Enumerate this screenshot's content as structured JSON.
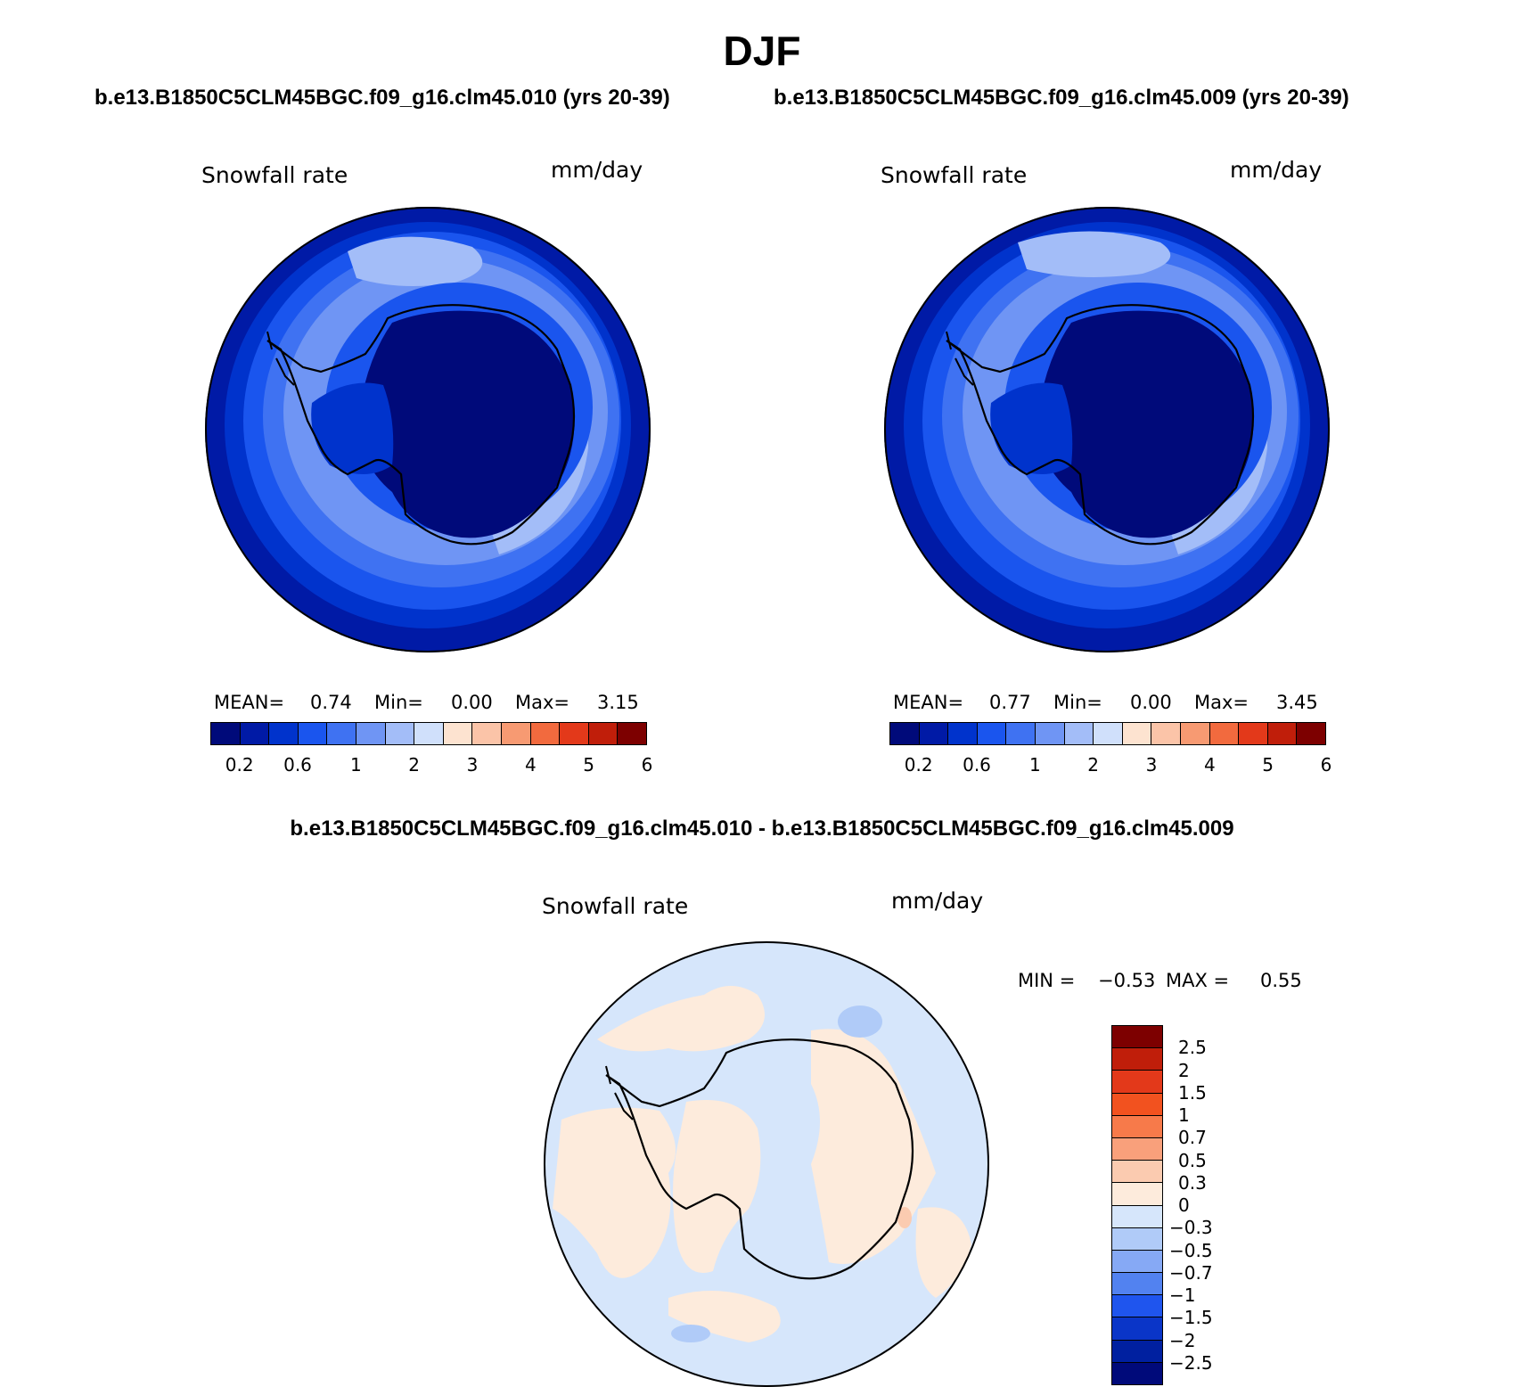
{
  "season": "DJF",
  "case_a": "b.e13.B1850C5CLM45BGC.f09_g16.clm45.010 (yrs 20-39)",
  "case_b": "b.e13.B1850C5CLM45BGC.f09_g16.clm45.009 (yrs 20-39)",
  "diff_title": "b.e13.B1850C5CLM45BGC.f09_g16.clm45.010 - b.e13.B1850C5CLM45BGC.f09_g16.clm45.009",
  "variable": "Snowfall rate",
  "units": "mm/day",
  "panel_a": {
    "mean_label": "MEAN=",
    "mean": "0.74",
    "min_label": "Min=",
    "min": "0.00",
    "max_label": "Max=",
    "max": "3.15"
  },
  "panel_b": {
    "mean_label": "MEAN=",
    "mean": "0.77",
    "min_label": "Min=",
    "min": "0.00",
    "max_label": "Max=",
    "max": "3.45"
  },
  "diff_stats": {
    "min_label": "MIN =",
    "min": "−0.53",
    "max_label": "MAX =",
    "max": "0.55"
  },
  "colors": {
    "abs_scale": [
      "#000a7a",
      "#001aa6",
      "#0033cc",
      "#1a55ee",
      "#3f72f2",
      "#6f95f4",
      "#a3bdf8",
      "#d0e0fb",
      "#fde3d0",
      "#fbc4a8",
      "#f79a72",
      "#f26a3e",
      "#e3391a",
      "#c01e0a",
      "#7d0000"
    ],
    "diff_scale": [
      "#7d0000",
      "#c01e0a",
      "#e3391a",
      "#f2521f",
      "#f77a4a",
      "#f9a07b",
      "#fbcbb0",
      "#fdebdc",
      "#d6e6fb",
      "#b0cbf8",
      "#86a9f5",
      "#5282f0",
      "#1f55ee",
      "#0a35c8",
      "#0020a0",
      "#000a7a"
    ]
  },
  "chart_data": [
    {
      "type": "heatmap",
      "title": "Snowfall rate",
      "units": "mm/day",
      "projection": "south polar stereographic",
      "case": "b.e13.B1850C5CLM45BGC.f09_g16.clm45.010 (yrs 20-39)",
      "stats": {
        "mean": 0.74,
        "min": 0.0,
        "max": 3.15
      },
      "colorbar_ticks": [
        "0.2",
        "0.6",
        "1",
        "2",
        "3",
        "4",
        "5",
        "6"
      ]
    },
    {
      "type": "heatmap",
      "title": "Snowfall rate",
      "units": "mm/day",
      "projection": "south polar stereographic",
      "case": "b.e13.B1850C5CLM45BGC.f09_g16.clm45.009 (yrs 20-39)",
      "stats": {
        "mean": 0.77,
        "min": 0.0,
        "max": 3.45
      },
      "colorbar_ticks": [
        "0.2",
        "0.6",
        "1",
        "2",
        "3",
        "4",
        "5",
        "6"
      ]
    },
    {
      "type": "heatmap",
      "title": "Snowfall rate",
      "units": "mm/day",
      "projection": "south polar stereographic",
      "difference": "b.e13.B1850C5CLM45BGC.f09_g16.clm45.010 - b.e13.B1850C5CLM45BGC.f09_g16.clm45.009",
      "stats": {
        "min": -0.53,
        "max": 0.55
      },
      "colorbar_ticks": [
        "2.5",
        "2",
        "1.5",
        "1",
        "0.7",
        "0.5",
        "0.3",
        "0",
        "−0.3",
        "−0.5",
        "−0.7",
        "−1",
        "−1.5",
        "−2",
        "−2.5"
      ]
    }
  ]
}
